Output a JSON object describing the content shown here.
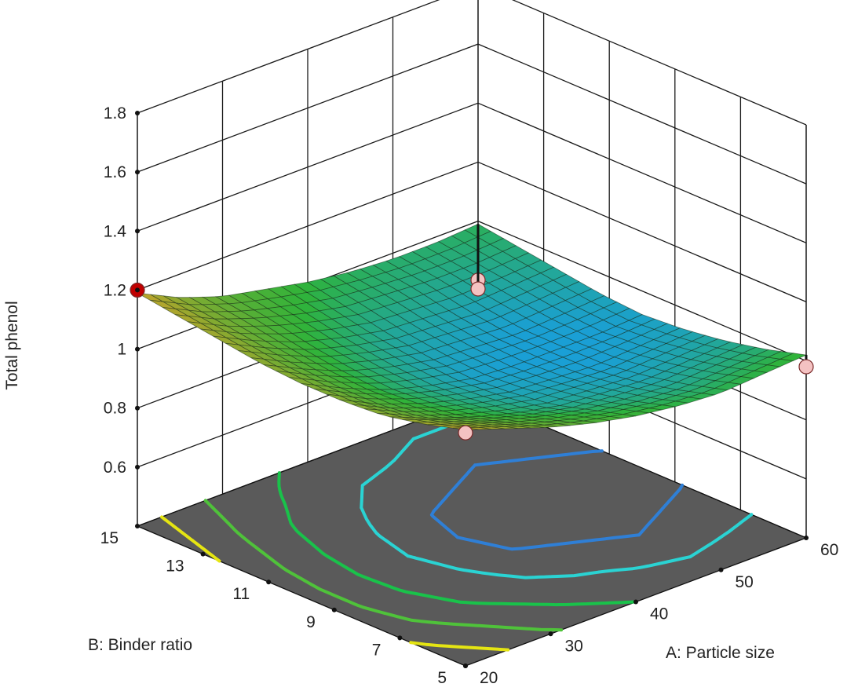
{
  "chart_data": {
    "type": "surface3d",
    "zlabel": "Total phenol",
    "xlabel": "A: Particle size",
    "ylabel": "B: Binder ratio",
    "x_ticks": [
      "20",
      "30",
      "40",
      "50",
      "60"
    ],
    "y_ticks": [
      "5",
      "7",
      "9",
      "11",
      "13",
      "15"
    ],
    "z_ticks": [
      "0.6",
      "0.8",
      "1",
      "1.2",
      "1.4",
      "1.6",
      "1.8"
    ],
    "xlim": [
      20,
      60
    ],
    "ylim": [
      5,
      15
    ],
    "zlim": [
      0.4,
      1.8
    ],
    "grid": true,
    "surface": {
      "x": [
        20,
        25,
        30,
        35,
        40,
        45,
        50,
        55,
        60
      ],
      "y": [
        5,
        6.25,
        7.5,
        8.75,
        10,
        11.25,
        12.5,
        13.75,
        15
      ],
      "z": [
        [
          1.2,
          1.15,
          1.1,
          1.06,
          1.03,
          1.01,
          1.0,
          1.01,
          1.02
        ],
        [
          1.16,
          1.11,
          1.06,
          1.02,
          0.99,
          0.97,
          0.96,
          0.97,
          0.98
        ],
        [
          1.13,
          1.07,
          1.02,
          0.98,
          0.95,
          0.94,
          0.93,
          0.94,
          0.95
        ],
        [
          1.12,
          1.05,
          1.0,
          0.96,
          0.93,
          0.92,
          0.91,
          0.92,
          0.93
        ],
        [
          1.12,
          1.05,
          0.99,
          0.95,
          0.92,
          0.91,
          0.91,
          0.91,
          0.92
        ],
        [
          1.13,
          1.06,
          1.0,
          0.96,
          0.93,
          0.92,
          0.91,
          0.92,
          0.93
        ],
        [
          1.15,
          1.08,
          1.02,
          0.98,
          0.95,
          0.94,
          0.93,
          0.94,
          0.95
        ],
        [
          1.17,
          1.1,
          1.05,
          1.01,
          0.98,
          0.97,
          0.96,
          0.96,
          0.97
        ],
        [
          1.19,
          1.12,
          1.07,
          1.04,
          1.01,
          0.99,
          0.98,
          0.98,
          0.99
        ]
      ]
    },
    "design_points": [
      {
        "x": 20,
        "y": 15,
        "z": 1.2,
        "color": "#c00000"
      },
      {
        "x": 20,
        "y": 5,
        "z": 1.19,
        "color": "#f4c2c2"
      },
      {
        "x": 60,
        "y": 5,
        "z": 0.98,
        "color": "#f4c2c2"
      },
      {
        "x": 60,
        "y": 15,
        "z": 0.8,
        "color": "#f4c2c2"
      },
      {
        "x": 60,
        "y": 15,
        "z": 0.77,
        "color": "#f4c2c2"
      }
    ],
    "contours": [
      {
        "level": 0.93,
        "color": "#2f7fd6"
      },
      {
        "level": 0.97,
        "color": "#2ad3d3"
      },
      {
        "level": 1.03,
        "color": "#19c24a"
      },
      {
        "level": 1.09,
        "color": "#4fc23a"
      },
      {
        "level": 1.15,
        "color": "#e5e512"
      }
    ],
    "colors": {
      "floor": "#5a5a5a",
      "grid": "#1a1a1a",
      "surface_low": "#1a9fd6",
      "surface_mid": "#2fb33a",
      "surface_high": "#c9a32a"
    }
  }
}
